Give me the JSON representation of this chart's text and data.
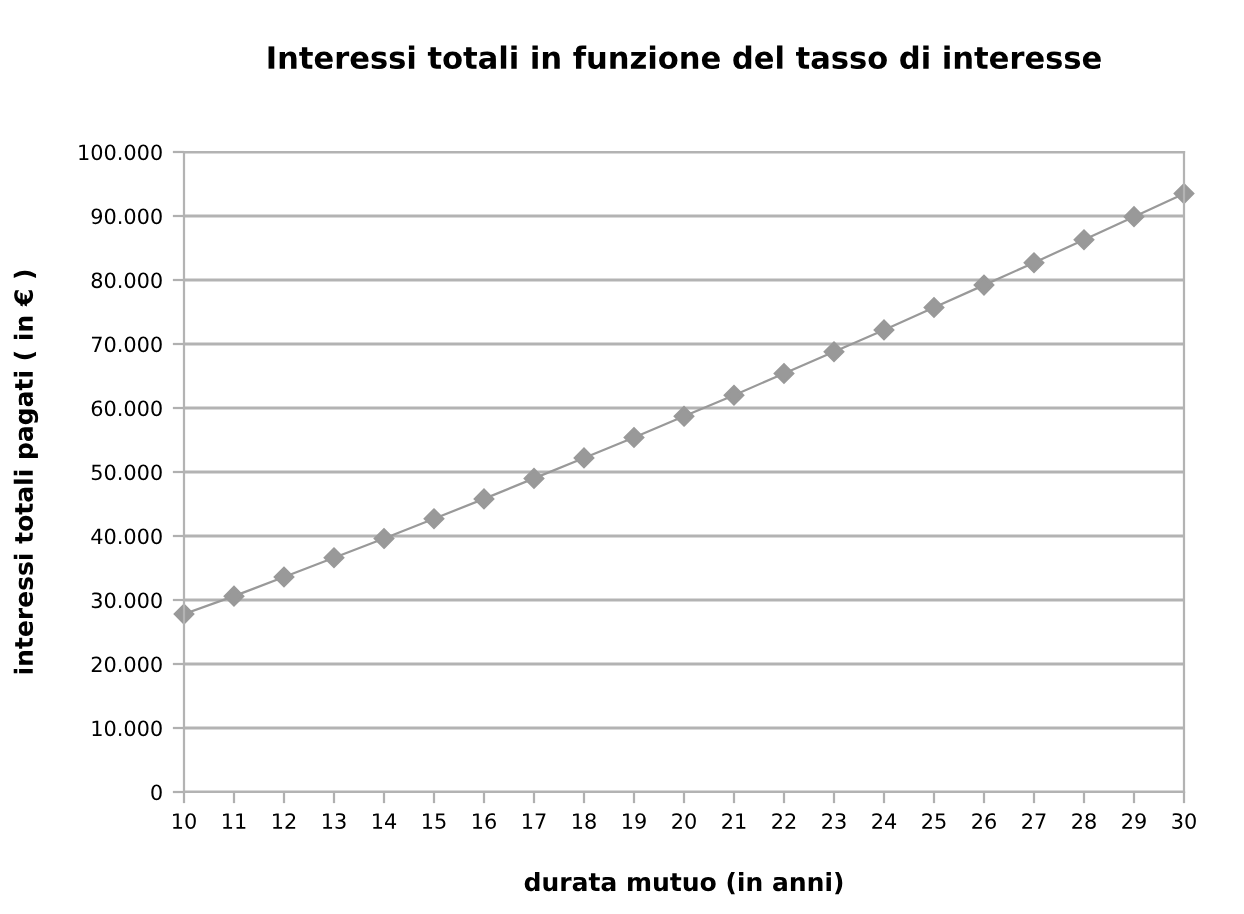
{
  "chart_data": {
    "type": "line",
    "title": "Interessi totali in funzione del tasso di interesse",
    "xlabel": "durata mutuo (in anni)",
    "ylabel": "interessi totali pagati ( in € )",
    "x": [
      10,
      11,
      12,
      13,
      14,
      15,
      16,
      17,
      18,
      19,
      20,
      21,
      22,
      23,
      24,
      25,
      26,
      27,
      28,
      29,
      30
    ],
    "series": [
      {
        "color": "#999999",
        "values": [
          27800,
          30600,
          33600,
          36600,
          39600,
          42700,
          45800,
          49000,
          52200,
          55400,
          58700,
          62000,
          65400,
          68800,
          72200,
          75700,
          79200,
          82700,
          86300,
          89900,
          93500
        ]
      }
    ],
    "xlim": [
      10,
      30
    ],
    "xticks": [
      10,
      11,
      12,
      13,
      14,
      15,
      16,
      17,
      18,
      19,
      20,
      21,
      22,
      23,
      24,
      25,
      26,
      27,
      28,
      29,
      30
    ],
    "ylim": [
      0,
      100000
    ],
    "yticks": [
      0,
      {
        "value": 10000,
        "label": "10.000"
      },
      {
        "value": 20000,
        "label": "20.000"
      },
      {
        "value": 30000,
        "label": "30.000"
      },
      {
        "value": 40000,
        "label": "40.000"
      },
      {
        "value": 50000,
        "label": "50.000"
      },
      {
        "value": 60000,
        "label": "60.000"
      },
      {
        "value": 70000,
        "label": "70.000"
      },
      {
        "value": 80000,
        "label": "80.000"
      },
      {
        "value": 90000,
        "label": "90.000"
      },
      {
        "value": 100000,
        "label": "100.000"
      }
    ],
    "grid": "y",
    "legend": false,
    "marker": "diamond",
    "line_style": "solid"
  }
}
